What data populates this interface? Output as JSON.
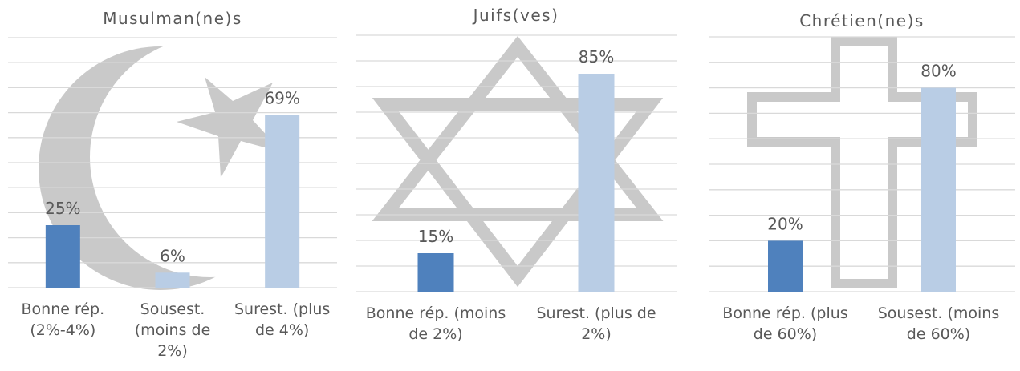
{
  "chart_data": [
    {
      "type": "bar",
      "title": "Musulman(ne)s",
      "categories": [
        "Bonne rép. (2%-4%)",
        "Sousest. (moins de 2%)",
        "Surest. (plus de 4%)"
      ],
      "values": [
        25,
        6,
        69
      ],
      "value_labels": [
        "25%",
        "6%",
        "69%"
      ],
      "colors": [
        "#4f81bd",
        "#b9cde5",
        "#b9cde5"
      ],
      "ylim": [
        0,
        100
      ],
      "yticks": [
        0,
        10,
        20,
        30,
        40,
        50,
        60,
        70,
        80,
        90,
        100
      ],
      "grid": true
    },
    {
      "type": "bar",
      "title": "Juifs(ves)",
      "categories": [
        "Bonne rép. (moins de 2%)",
        "Surest. (plus de 2%)"
      ],
      "values": [
        15,
        85
      ],
      "value_labels": [
        "15%",
        "85%"
      ],
      "colors": [
        "#4f81bd",
        "#b9cde5"
      ],
      "ylim": [
        0,
        100
      ],
      "yticks": [
        0,
        10,
        20,
        30,
        40,
        50,
        60,
        70,
        80,
        90,
        100
      ],
      "grid": true
    },
    {
      "type": "bar",
      "title": "Chrétien(ne)s",
      "categories": [
        "Bonne rép. (plus de 60%)",
        "Sousest. (moins de 60%)"
      ],
      "values": [
        20,
        80
      ],
      "value_labels": [
        "20%",
        "80%"
      ],
      "colors": [
        "#4f81bd",
        "#b9cde5"
      ],
      "ylim": [
        0,
        100
      ],
      "yticks": [
        0,
        10,
        20,
        30,
        40,
        50,
        60,
        70,
        80,
        90,
        100
      ],
      "grid": true
    }
  ]
}
